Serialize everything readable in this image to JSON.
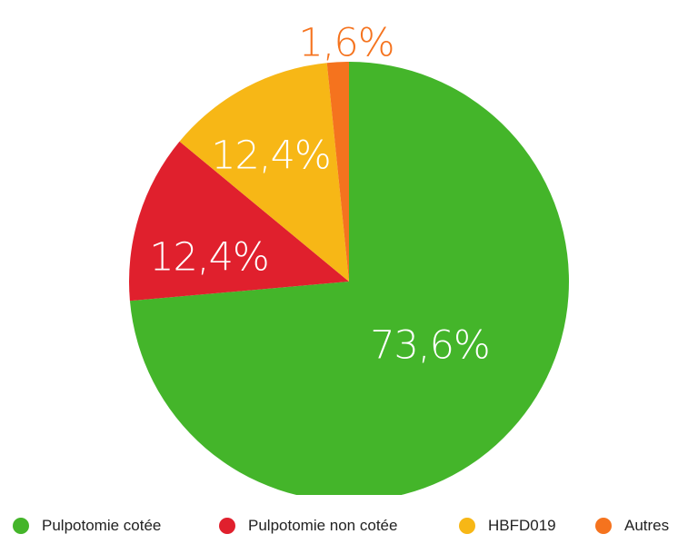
{
  "chart_data": {
    "type": "pie",
    "slices": [
      {
        "label": "Pulpotomie cotée",
        "value": 73.6,
        "value_label": "73,6%",
        "color": "#44b52a",
        "label_color": "#ffffff"
      },
      {
        "label": "Pulpotomie non cotée",
        "value": 12.4,
        "value_label": "12,4%",
        "color": "#e0202d",
        "label_color": "#ffffff"
      },
      {
        "label": "HBFD019",
        "value": 12.4,
        "value_label": "12,4%",
        "color": "#f7b716",
        "label_color": "#ffffff"
      },
      {
        "label": "Autres",
        "value": 1.6,
        "value_label": "1,6%",
        "color": "#f5731e",
        "label_color": "#f5731e"
      }
    ],
    "start_angle": "12 o'clock",
    "direction": "clockwise",
    "legend_position": "bottom"
  }
}
